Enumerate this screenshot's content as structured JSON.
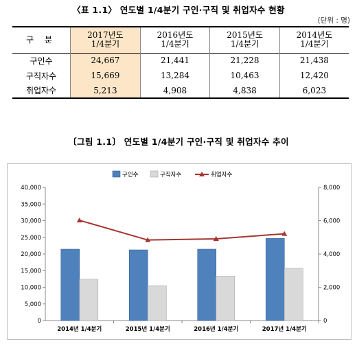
{
  "table": {
    "title": "〈표 1.1〉 연도별 1/4분기 구인·구직 및 취업자수 현황",
    "unit": "(단위 : 명)",
    "header": [
      "구 분",
      "2017년도\n1/4분기",
      "2016년도\n1/4분기",
      "2015년도\n1/4분기",
      "2014년도\n1/4분기"
    ],
    "rows": [
      {
        "label": "구인수",
        "values": [
          "24,667",
          "21,441",
          "21,228",
          "21,438"
        ]
      },
      {
        "label": "구직자수",
        "values": [
          "15,669",
          "13,284",
          "10,463",
          "12,420"
        ]
      },
      {
        "label": "취업자수",
        "values": [
          "5,213",
          "4,908",
          "4,838",
          "6,023"
        ]
      }
    ]
  },
  "figure": {
    "title": "〔그림 1.1〕 연도별 1/4분기 구인·구직 및 취업자수 추이"
  },
  "colors": {
    "bar1": "#4f81bd",
    "bar2": "#d9d9d9",
    "line": "#a5342f",
    "highlight": "#fde6c8"
  },
  "chart_data": {
    "type": "bar",
    "categories": [
      "2014년 1/4분기",
      "2015년 1/4분기",
      "2016년 1/4분기",
      "2017년 1/4분기"
    ],
    "series": [
      {
        "name": "구인수",
        "type": "bar",
        "axis": "left",
        "values": [
          21438,
          21228,
          21441,
          24667
        ]
      },
      {
        "name": "구직자수",
        "type": "bar",
        "axis": "left",
        "values": [
          12420,
          10463,
          13284,
          15669
        ]
      },
      {
        "name": "취업자수",
        "type": "line",
        "axis": "right",
        "values": [
          6023,
          4838,
          4908,
          5213
        ]
      }
    ],
    "ylim": [
      0,
      40000
    ],
    "yticks": [
      "0",
      "5,000",
      "10,000",
      "15,000",
      "20,000",
      "25,000",
      "30,000",
      "35,000",
      "40,000"
    ],
    "y2lim": [
      0,
      8000
    ],
    "y2ticks": [
      "0",
      "2,000",
      "4,000",
      "6,000",
      "8,000"
    ],
    "legend": "top",
    "grid": false
  }
}
